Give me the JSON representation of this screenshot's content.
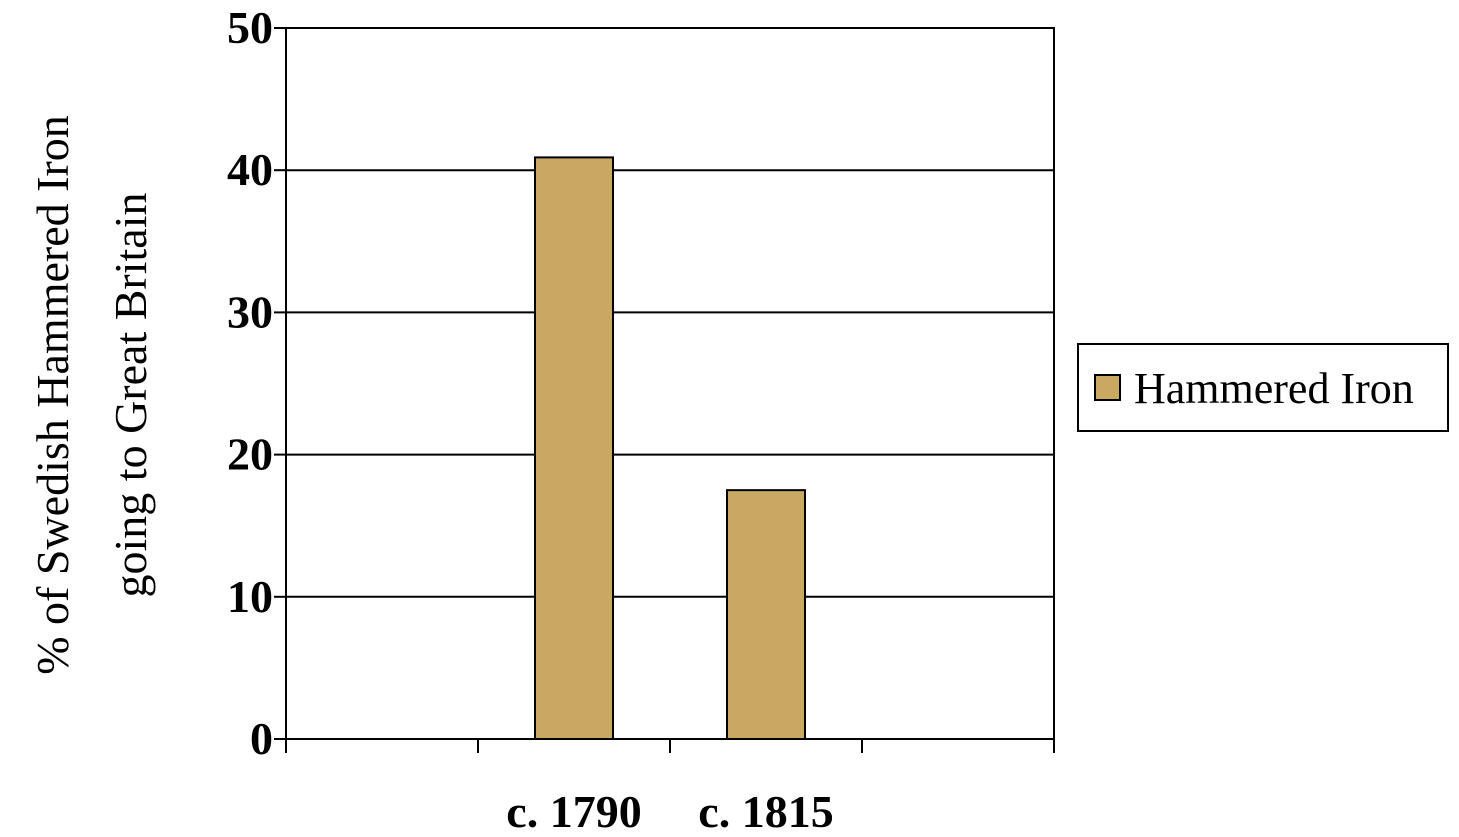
{
  "chart_data": {
    "type": "bar",
    "title": "",
    "xlabel": "",
    "ylabel_lines": [
      "% of Swedish Hammered Iron",
      "going to Great Britain"
    ],
    "categories": [
      "",
      "c. 1790",
      "c. 1815",
      ""
    ],
    "series": [
      {
        "name": "Hammered Iron",
        "values": [
          null,
          40.9,
          17.5,
          null
        ],
        "color": "#c9a862"
      }
    ],
    "ylim": [
      0,
      50
    ],
    "yticks": [
      "0",
      "10",
      "20",
      "30",
      "40",
      "50"
    ],
    "grid": true,
    "legend": "right"
  },
  "colors": {
    "bar": "#c9a862",
    "axis": "#000000",
    "grid": "#000000",
    "background": "#ffffff"
  }
}
